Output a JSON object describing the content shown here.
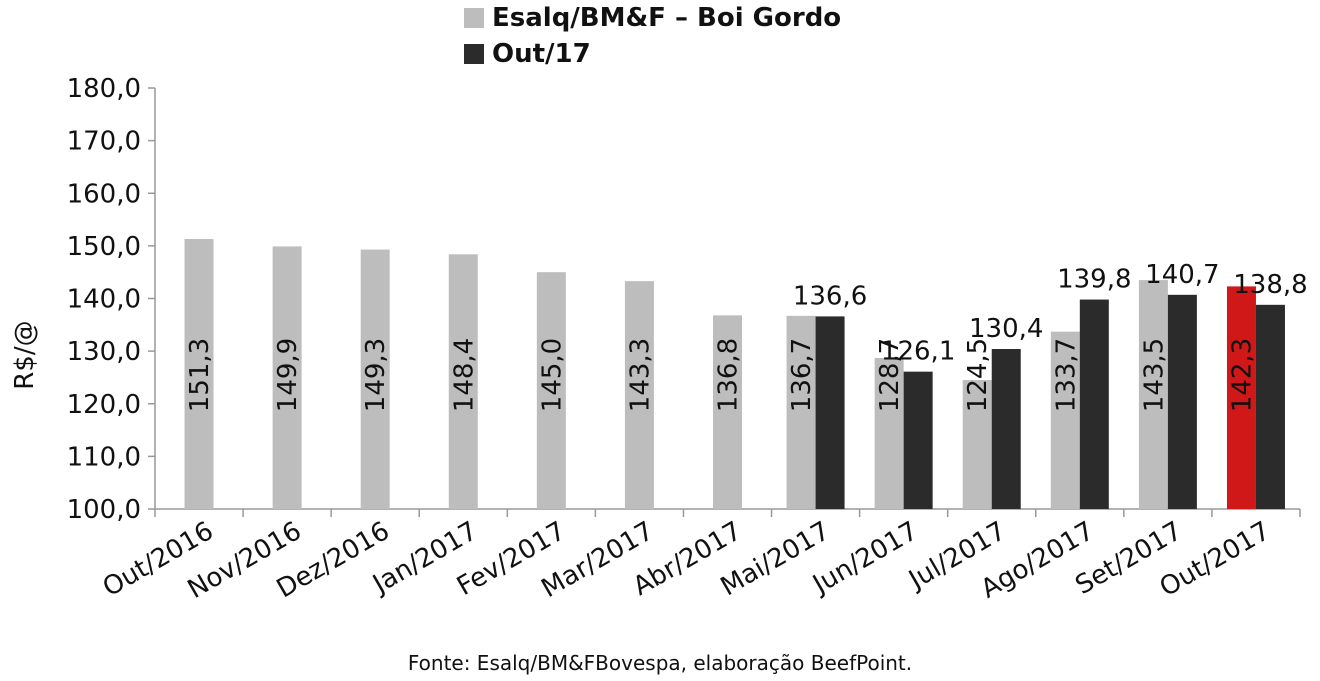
{
  "chart_data": {
    "type": "bar",
    "title": "",
    "ylabel": "R$/@",
    "xlabel": "",
    "ylim": [
      100,
      180
    ],
    "yticks": [
      "100,0",
      "110,0",
      "120,0",
      "130,0",
      "140,0",
      "150,0",
      "160,0",
      "170,0",
      "180,0"
    ],
    "categories": [
      "Out/2016",
      "Nov/2016",
      "Dez/2016",
      "Jan/2017",
      "Fev/2017",
      "Mar/2017",
      "Abr/2017",
      "Mai/2017",
      "Jun/2017",
      "Jul/2017",
      "Ago/2017",
      "Set/2017",
      "Out/2017"
    ],
    "series": [
      {
        "name": "Esalq/BM&F – Boi Gordo",
        "color": "#bdbdbd",
        "highlight_last_color": "#d01818",
        "values": [
          151.3,
          149.9,
          149.3,
          148.4,
          145.0,
          143.3,
          136.8,
          136.7,
          128.7,
          124.5,
          133.7,
          143.5,
          142.3
        ],
        "labels": [
          "151,3",
          "149,9",
          "149,3",
          "148,4",
          "145,0",
          "143,3",
          "136,8",
          "136,7",
          "128,7",
          "124,5",
          "133,7",
          "143,5",
          "142,3"
        ]
      },
      {
        "name": "Out/17",
        "color": "#2b2b2b",
        "values": [
          null,
          null,
          null,
          null,
          null,
          null,
          null,
          136.6,
          126.1,
          130.4,
          139.8,
          140.7,
          138.8
        ],
        "labels": [
          null,
          null,
          null,
          null,
          null,
          null,
          null,
          "136,6",
          "126,1",
          "130,4",
          "139,8",
          "140,7",
          "138,8"
        ]
      }
    ],
    "legend_position": "top",
    "grid": false
  },
  "source": "Fonte: Esalq/BM&FBovespa, elaboração BeefPoint."
}
